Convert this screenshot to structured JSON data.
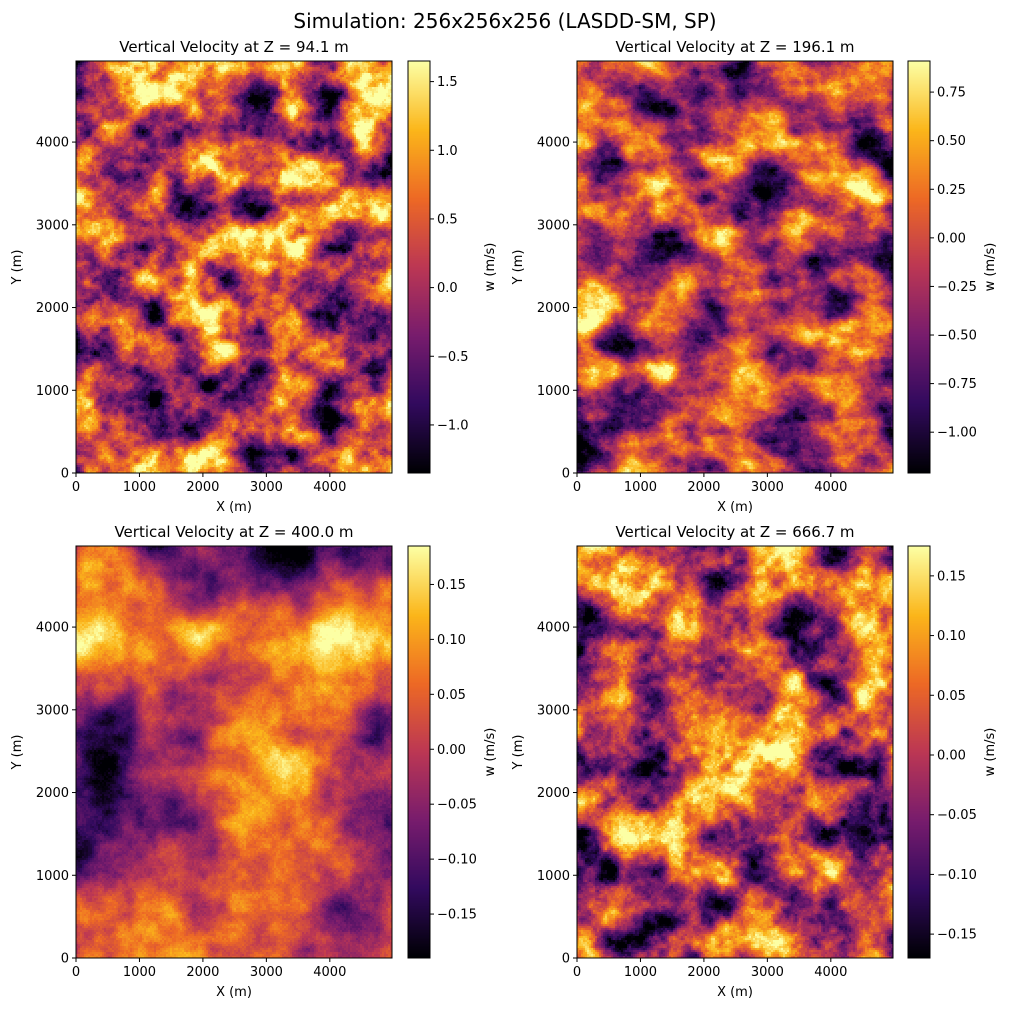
{
  "figure": {
    "suptitle": "Simulation: 256x256x256 (LASDD-SM, SP)",
    "colormap": "inferno",
    "colormap_stops": [
      "#000004",
      "#320a5e",
      "#781c6d",
      "#bc3754",
      "#ed6925",
      "#fbb61a",
      "#fcffa4"
    ]
  },
  "chart_data": [
    {
      "type": "heatmap",
      "title": "Vertical Velocity at Z = 94.1 m",
      "xlabel": "X (m)",
      "ylabel": "Y (m)",
      "xlim": [
        0,
        4980
      ],
      "ylim": [
        0,
        4980
      ],
      "xticks": [
        0,
        1000,
        2000,
        3000,
        4000
      ],
      "yticks": [
        0,
        1000,
        2000,
        3000,
        4000
      ],
      "colorbar": {
        "label": "w (m/s)",
        "range": [
          -1.35,
          1.65
        ],
        "ticks": [
          -1.0,
          -0.5,
          0.0,
          0.5,
          1.0,
          1.5
        ],
        "tick_labels": [
          "−1.0",
          "−0.5",
          "0.0",
          "0.5",
          "1.0",
          "1.5"
        ]
      },
      "field": {
        "scale": 3,
        "contrast": 0.55,
        "seed": 11,
        "aniso": 0
      }
    },
    {
      "type": "heatmap",
      "title": "Vertical Velocity at Z = 196.1 m",
      "xlabel": "X (m)",
      "ylabel": "Y (m)",
      "xlim": [
        0,
        4980
      ],
      "ylim": [
        0,
        4980
      ],
      "xticks": [
        0,
        1000,
        2000,
        3000,
        4000
      ],
      "yticks": [
        0,
        1000,
        2000,
        3000,
        4000
      ],
      "colorbar": {
        "label": "w (m/s)",
        "range": [
          -1.21,
          0.91
        ],
        "ticks": [
          -1.0,
          -0.75,
          -0.5,
          -0.25,
          0.0,
          0.25,
          0.5,
          0.75
        ],
        "tick_labels": [
          "−1.00",
          "−0.75",
          "−0.50",
          "−0.25",
          "0.00",
          "0.25",
          "0.50",
          "0.75"
        ]
      },
      "field": {
        "scale": 5,
        "contrast": 0.6,
        "seed": 23,
        "aniso": 1
      }
    },
    {
      "type": "heatmap",
      "title": "Vertical Velocity at Z = 400.0 m",
      "xlabel": "X (m)",
      "ylabel": "Y (m)",
      "xlim": [
        0,
        4980
      ],
      "ylim": [
        0,
        4980
      ],
      "xticks": [
        0,
        1000,
        2000,
        3000,
        4000
      ],
      "yticks": [
        0,
        1000,
        2000,
        3000,
        4000
      ],
      "colorbar": {
        "label": "w (m/s)",
        "range": [
          -0.19,
          0.185
        ],
        "ticks": [
          -0.15,
          -0.1,
          -0.05,
          0.0,
          0.05,
          0.1,
          0.15
        ],
        "tick_labels": [
          "−0.15",
          "−0.10",
          "−0.05",
          "0.00",
          "0.05",
          "0.10",
          "0.15"
        ]
      },
      "field": {
        "scale": 8,
        "contrast": 0.65,
        "seed": 37,
        "aniso": 0
      }
    },
    {
      "type": "heatmap",
      "title": "Vertical Velocity at Z = 666.7 m",
      "xlabel": "X (m)",
      "ylabel": "Y (m)",
      "xlim": [
        0,
        4980
      ],
      "ylim": [
        0,
        4980
      ],
      "xticks": [
        0,
        1000,
        2000,
        3000,
        4000
      ],
      "yticks": [
        0,
        1000,
        2000,
        3000,
        4000
      ],
      "colorbar": {
        "label": "w (m/s)",
        "range": [
          -0.17,
          0.175
        ],
        "ticks": [
          -0.15,
          -0.1,
          -0.05,
          0.0,
          0.05,
          0.1,
          0.15
        ],
        "tick_labels": [
          "−0.15",
          "−0.10",
          "−0.05",
          "0.00",
          "0.05",
          "0.10",
          "0.15"
        ]
      },
      "field": {
        "scale": 3,
        "contrast": 0.6,
        "seed": 53,
        "aniso": 0
      }
    }
  ]
}
